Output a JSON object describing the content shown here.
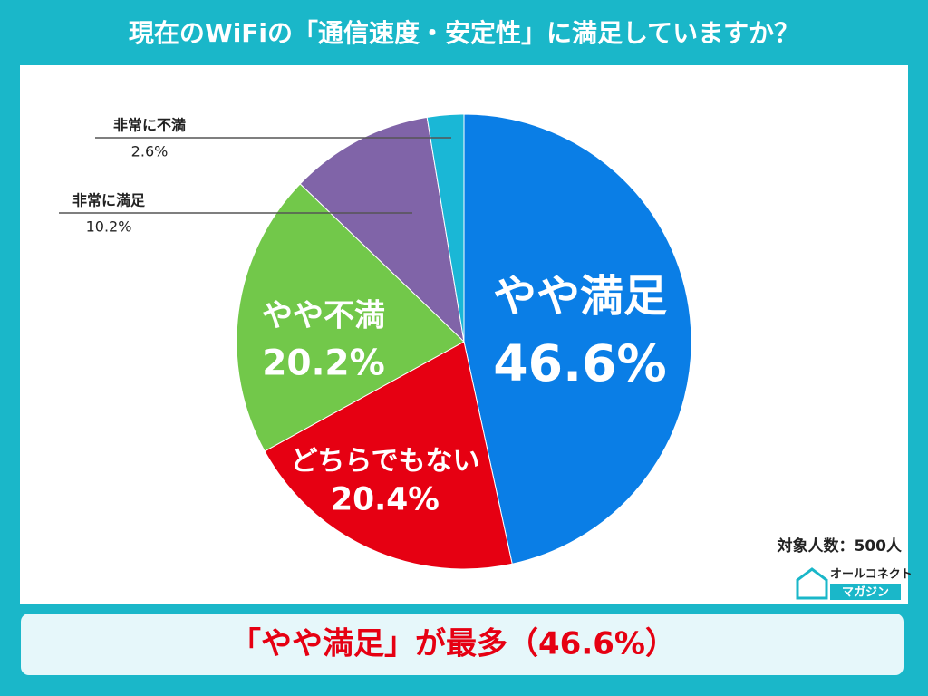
{
  "chart_data": {
    "type": "pie",
    "title": "現在のWiFiの「通信速度・安定性」に満足していますか？",
    "categories": [
      "やや満足",
      "どちらでもない",
      "やや不満",
      "非常に満足",
      "非常に不満"
    ],
    "values": [
      46.6,
      20.4,
      20.2,
      10.2,
      2.6
    ],
    "value_labels": [
      "46.6%",
      "20.4%",
      "20.2%",
      "10.2%",
      "2.6%"
    ],
    "colors": [
      "#0a7ee6",
      "#e60012",
      "#72c84a",
      "#8064a8",
      "#1ab7d6"
    ]
  },
  "note": "対象人数：500人",
  "summary": "「やや満足」が最多（46.6%）",
  "logo": {
    "line1": "オールコネクト",
    "line2": "マガジン"
  }
}
